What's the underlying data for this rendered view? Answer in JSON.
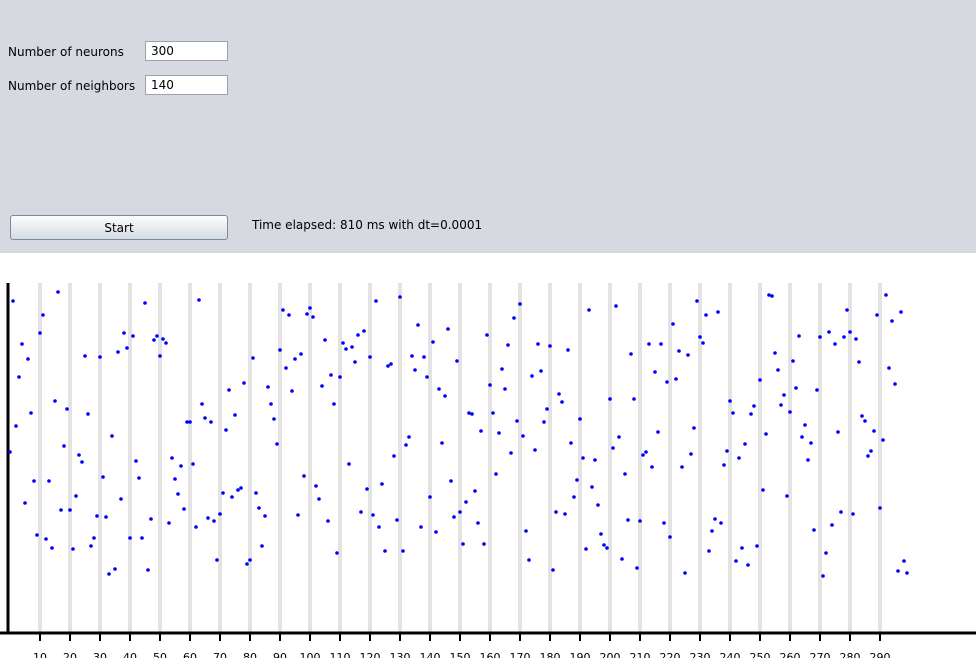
{
  "controls": {
    "neurons_label": "Number of neurons",
    "neurons_value": "300",
    "neighbors_label": "Number of neighbors",
    "neighbors_value": "140",
    "start_button": "Start",
    "status": "Time elapsed: 810 ms with dt=0.0001"
  },
  "chart_data": {
    "type": "scatter",
    "color": "#0000ff",
    "grid": true,
    "xlim": [
      0,
      322
    ],
    "ylim": [
      0,
      350
    ],
    "xticks": [
      10,
      20,
      30,
      40,
      50,
      60,
      70,
      80,
      90,
      100,
      110,
      120,
      130,
      140,
      150,
      160,
      170,
      180,
      190,
      200,
      210,
      220,
      230,
      240,
      250,
      260,
      270,
      280,
      290
    ],
    "x": [
      0,
      1,
      2,
      3,
      4,
      5,
      6,
      7,
      8,
      9,
      10,
      11,
      12,
      13,
      14,
      15,
      16,
      17,
      18,
      19,
      20,
      21,
      22,
      23,
      24,
      25,
      26,
      27,
      28,
      29,
      30,
      31,
      32,
      33,
      34,
      35,
      36,
      37,
      38,
      39,
      40,
      41,
      42,
      43,
      44,
      45,
      46,
      47,
      48,
      49,
      50,
      51,
      52,
      53,
      54,
      55,
      56,
      57,
      58,
      59,
      60,
      61,
      62,
      63,
      64,
      65,
      66,
      67,
      68,
      69,
      70,
      71,
      72,
      73,
      74,
      75,
      76,
      77,
      78,
      79,
      80,
      81,
      82,
      83,
      84,
      85,
      86,
      87,
      88,
      89,
      90,
      91,
      92,
      93,
      94,
      95,
      96,
      97,
      98,
      99,
      100,
      101,
      102,
      103,
      104,
      105,
      106,
      107,
      108,
      109,
      110,
      111,
      112,
      113,
      114,
      115,
      116,
      117,
      118,
      119,
      120,
      121,
      122,
      123,
      124,
      125,
      126,
      127,
      128,
      129,
      130,
      131,
      132,
      133,
      134,
      135,
      136,
      137,
      138,
      139,
      140,
      141,
      142,
      143,
      144,
      145,
      146,
      147,
      148,
      149,
      150,
      151,
      152,
      153,
      154,
      155,
      156,
      157,
      158,
      159,
      160,
      161,
      162,
      163,
      164,
      165,
      166,
      167,
      168,
      169,
      170,
      171,
      172,
      173,
      174,
      175,
      176,
      177,
      178,
      179,
      180,
      181,
      182,
      183,
      184,
      185,
      186,
      187,
      188,
      189,
      190,
      191,
      192,
      193,
      194,
      195,
      196,
      197,
      198,
      199,
      200,
      201,
      202,
      203,
      204,
      205,
      206,
      207,
      208,
      209,
      210,
      211,
      212,
      213,
      214,
      215,
      216,
      217,
      218,
      219,
      220,
      221,
      222,
      223,
      224,
      225,
      226,
      227,
      228,
      229,
      230,
      231,
      232,
      233,
      234,
      235,
      236,
      237,
      238,
      239,
      240,
      241,
      242,
      243,
      244,
      245,
      246,
      247,
      248,
      249,
      250,
      251,
      252,
      253,
      254,
      255,
      256,
      257,
      258,
      259,
      260,
      261,
      262,
      263,
      264,
      265,
      266,
      267,
      268,
      269,
      270,
      271,
      272,
      273,
      274,
      275,
      276,
      277,
      278,
      279,
      280,
      281,
      282,
      283,
      284,
      285,
      286,
      287,
      288,
      289,
      290,
      291,
      292,
      293,
      294,
      295,
      296,
      297,
      298,
      299
    ],
    "values": [
      181,
      332,
      207,
      256,
      289,
      130,
      274,
      220,
      152,
      98,
      300,
      318,
      94,
      152,
      85,
      232,
      341,
      123,
      187,
      224,
      123,
      84,
      137,
      178,
      171,
      277,
      219,
      87,
      95,
      117,
      276,
      156,
      116,
      59,
      197,
      64,
      281,
      134,
      300,
      285,
      95,
      297,
      172,
      155,
      95,
      330,
      63,
      114,
      293,
      297,
      277,
      294,
      290,
      110,
      175,
      154,
      139,
      167,
      124,
      211,
      211,
      169,
      106,
      333,
      229,
      215,
      115,
      211,
      112,
      73,
      119,
      140,
      203,
      243,
      136,
      218,
      143,
      145,
      250,
      69,
      73,
      275,
      140,
      125,
      87,
      117,
      246,
      229,
      214,
      189,
      283,
      323,
      265,
      318,
      242,
      274,
      118,
      279,
      157,
      319,
      325,
      316,
      147,
      134,
      247,
      293,
      112,
      258,
      229,
      80,
      256,
      290,
      284,
      169,
      286,
      271,
      298,
      121,
      302,
      144,
      276,
      118,
      332,
      106,
      149,
      82,
      267,
      269,
      177,
      113,
      336,
      82,
      188,
      196,
      277,
      263,
      308,
      106,
      276,
      256,
      136,
      291,
      101,
      244,
      190,
      237,
      304,
      152,
      116,
      272,
      121,
      89,
      131,
      220,
      219,
      142,
      110,
      202,
      89,
      298,
      248,
      220,
      159,
      200,
      264,
      244,
      288,
      180,
      315,
      212,
      329,
      197,
      102,
      73,
      257,
      183,
      289,
      262,
      211,
      224,
      287,
      63,
      121,
      239,
      231,
      119,
      283,
      190,
      136,
      153,
      214,
      175,
      84,
      323,
      146,
      173,
      128,
      99,
      88,
      85,
      234,
      185,
      327,
      196,
      74,
      159,
      113,
      279,
      234,
      65,
      112,
      178,
      181,
      289,
      166,
      261,
      201,
      289,
      110,
      251,
      96,
      309,
      254,
      282,
      166,
      60,
      278,
      179,
      205,
      332,
      296,
      290,
      318,
      82,
      102,
      114,
      321,
      110,
      168,
      182,
      232,
      220,
      72,
      175,
      85,
      189,
      68,
      219,
      227,
      87,
      253,
      143,
      199,
      338,
      337,
      280,
      263,
      228,
      238,
      137,
      221,
      272,
      245,
      297,
      196,
      208,
      173,
      190,
      103,
      243,
      296,
      57,
      80,
      301,
      108,
      289,
      201,
      121,
      296,
      323,
      301,
      119,
      294,
      271,
      217,
      212,
      177,
      182,
      202,
      318,
      125,
      193,
      338,
      265,
      312,
      249,
      62,
      321,
      72,
      60
    ]
  }
}
